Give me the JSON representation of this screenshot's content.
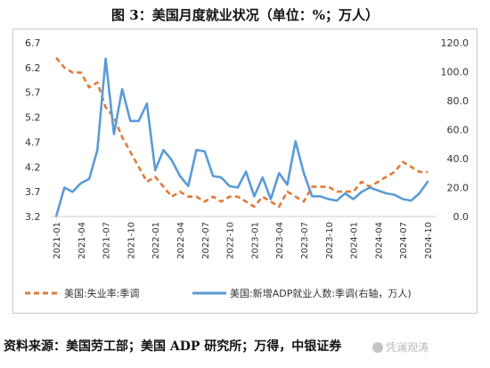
{
  "title": "图 3：美国月度就业状况（单位：%；万人）",
  "source": "资料来源：美国劳工部；美国 ADP 研究所；万得，中银证券",
  "watermark": "凭澜观涛",
  "chart_data": {
    "type": "line",
    "x": [
      "2021-01",
      "2021-02",
      "2021-03",
      "2021-04",
      "2021-05",
      "2021-06",
      "2021-07",
      "2021-08",
      "2021-09",
      "2021-10",
      "2021-11",
      "2021-12",
      "2022-01",
      "2022-02",
      "2022-03",
      "2022-04",
      "2022-05",
      "2022-06",
      "2022-07",
      "2022-08",
      "2022-09",
      "2022-10",
      "2022-11",
      "2022-12",
      "2023-01",
      "2023-02",
      "2023-03",
      "2023-04",
      "2023-05",
      "2023-06",
      "2023-07",
      "2023-08",
      "2023-09",
      "2023-10",
      "2023-11",
      "2023-12",
      "2024-01",
      "2024-02",
      "2024-03",
      "2024-04",
      "2024-05",
      "2024-06",
      "2024-07",
      "2024-08",
      "2024-09",
      "2024-10"
    ],
    "x_tick_labels": [
      "2021-01",
      "2021-04",
      "2021-07",
      "2021-10",
      "2022-01",
      "2022-04",
      "2022-07",
      "2022-10",
      "2023-01",
      "2023-04",
      "2023-07",
      "2023-10",
      "2024-01",
      "2024-04",
      "2024-07",
      "2024-10"
    ],
    "y_left": {
      "ticks": [
        "3.2",
        "3.7",
        "4.2",
        "4.7",
        "5.2",
        "5.7",
        "6.2",
        "6.7"
      ],
      "lim": [
        3.2,
        6.7
      ]
    },
    "y_right": {
      "ticks": [
        "0.0",
        "20.0",
        "40.0",
        "60.0",
        "80.0",
        "100.0",
        "120.0"
      ],
      "lim": [
        0,
        120
      ]
    },
    "series": [
      {
        "name": "美国:失业率:季调",
        "axis": "left",
        "color": "#E07B39",
        "dash": true,
        "values": [
          6.4,
          6.2,
          6.1,
          6.1,
          5.8,
          5.9,
          5.4,
          5.2,
          4.8,
          4.5,
          4.2,
          3.9,
          4.0,
          3.8,
          3.6,
          3.7,
          3.6,
          3.6,
          3.5,
          3.6,
          3.5,
          3.6,
          3.6,
          3.5,
          3.4,
          3.6,
          3.5,
          3.4,
          3.7,
          3.6,
          3.5,
          3.8,
          3.8,
          3.8,
          3.7,
          3.7,
          3.7,
          3.9,
          3.8,
          3.9,
          4.0,
          4.1,
          4.3,
          4.2,
          4.1,
          4.1
        ]
      },
      {
        "name": "美国:新增ADP就业人数:季调(右轴，万人)",
        "axis": "right",
        "color": "#5B9BD5",
        "dash": false,
        "values": [
          0,
          20,
          17,
          23,
          26,
          46,
          109,
          57,
          88,
          66,
          66,
          78,
          32,
          46,
          39,
          28,
          21,
          46,
          45,
          28,
          27,
          21,
          20,
          31,
          14,
          27,
          12,
          30,
          22,
          52,
          30,
          14,
          14,
          12,
          11,
          16,
          12,
          17,
          20,
          18,
          16,
          15,
          12,
          11,
          16,
          24
        ]
      }
    ],
    "legend_position": "bottom",
    "grid": false
  }
}
